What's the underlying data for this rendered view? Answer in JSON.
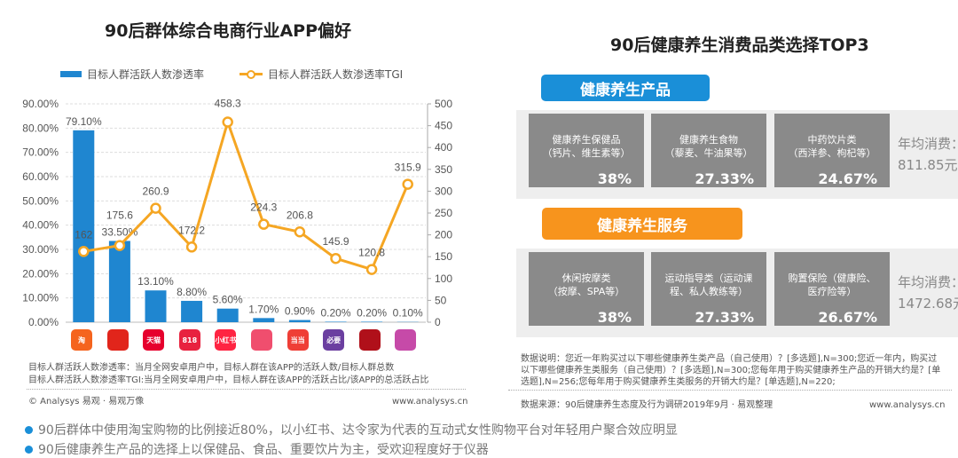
{
  "left": {
    "title": "90后群体综合电商行业APP偏好",
    "notes": [
      "目标人群活跃人数渗透率：当月全网安卓用户中，目标人群在该APP的活跃人数/目标人群总数",
      "目标人群活跃人数渗透率TGI:当月全网安卓用户中，目标人群在该APP的活跃占比/该APP的总活跃占比"
    ],
    "copyright": "© Analysys 易观 · 易观万像",
    "site": "www.analysys.cn",
    "app_icons": [
      {
        "icon": "taobao-icon",
        "color": "#f5641e",
        "text": "淘"
      },
      {
        "icon": "jd-icon",
        "color": "#e1251b",
        "text": ""
      },
      {
        "icon": "tmall-icon",
        "color": "#e6002d",
        "text": "天猫"
      },
      {
        "icon": "818-icon",
        "color": "#e8223f",
        "text": "818"
      },
      {
        "icon": "xiaohongshu-icon",
        "color": "#ff2442",
        "text": "小红书"
      },
      {
        "icon": "pink-app-icon",
        "color": "#f04e6e",
        "text": ""
      },
      {
        "icon": "dangdang-icon",
        "color": "#ef3e36",
        "text": "当当"
      },
      {
        "icon": "biyao-icon",
        "color": "#6b3fa0",
        "text": "必要"
      },
      {
        "icon": "red-bag-app-icon",
        "color": "#b0101a",
        "text": ""
      },
      {
        "icon": "magenta-app-icon",
        "color": "#c64aa8",
        "text": ""
      }
    ]
  },
  "chart_data": {
    "type": "bar+line",
    "title": "90后群体综合电商行业APP偏好",
    "categories": [
      "1",
      "2",
      "3",
      "4",
      "5",
      "6",
      "7",
      "8",
      "9",
      "10"
    ],
    "series": [
      {
        "name": "目标人群活跃人数渗透率",
        "type": "bar",
        "axis": "left",
        "color": "#1f86d0",
        "values": [
          79.1,
          33.5,
          13.1,
          8.8,
          5.6,
          1.7,
          0.9,
          0.2,
          0.2,
          0.1
        ],
        "labels": [
          "79.10%",
          "33.50%",
          "13.10%",
          "8.80%",
          "5.60%",
          "1.70%",
          "0.90%",
          "0.20%",
          "0.20%",
          "0.10%"
        ]
      },
      {
        "name": "目标人群活跃人数渗透率TGI",
        "type": "line",
        "axis": "right",
        "color": "#f5a623",
        "values": [
          162,
          175.6,
          260.9,
          172.2,
          458.3,
          224.3,
          206.8,
          145.9,
          120.8,
          315.9
        ],
        "labels": [
          "162",
          "175.6",
          "260.9",
          "172.2",
          "458.3",
          "224.3",
          "206.8",
          "145.9",
          "120.8",
          "315.9"
        ]
      }
    ],
    "y_left": {
      "range": [
        0,
        90
      ],
      "ticks": [
        "0.00%",
        "10.00%",
        "20.00%",
        "30.00%",
        "40.00%",
        "50.00%",
        "60.00%",
        "70.00%",
        "80.00%",
        "90.00%"
      ]
    },
    "y_right": {
      "range": [
        0,
        500
      ],
      "ticks": [
        "0",
        "50",
        "100",
        "150",
        "200",
        "250",
        "300",
        "350",
        "400",
        "450",
        "500"
      ]
    },
    "grid": true,
    "legend": "top"
  },
  "right": {
    "title": "90后健康养生消费品类选择TOP3",
    "products": {
      "label": "健康养生产品",
      "color": "#1a8fd8",
      "items": [
        {
          "name": "健康养生保健品",
          "sub": "（钙片、维生素等）",
          "pct": "38%"
        },
        {
          "name": "健康养生食物",
          "sub": "（藜麦、牛油果等）",
          "pct": "27.33%"
        },
        {
          "name": "中药饮片类",
          "sub": "（西洋参、枸杞等）",
          "pct": "24.67%"
        }
      ],
      "annual_label": "年均消费：",
      "annual_value": "811.85元"
    },
    "services": {
      "label": "健康养生服务",
      "color": "#f7941d",
      "items": [
        {
          "name": "休闲按摩类",
          "sub": "（按摩、SPA等）",
          "pct": "38%"
        },
        {
          "name": "运动指导类（运动课",
          "sub": "程、私人教练等）",
          "pct": "27.33%"
        },
        {
          "name": "购置保险（健康险、",
          "sub": "医疗险等）",
          "pct": "26.67%"
        }
      ],
      "annual_label": "年均消费：",
      "annual_value": "1472.68元"
    },
    "notes": [
      "数据说明：您近一年购买过以下哪些健康养生类产品（自己使用）？[多选题],N=300;您近一年内，购买过",
      "以下哪些健康养生类服务（自己使用）？[多选题],N=300;您每年用于购买健康养生产品的开销大约是？[单",
      "选题],N=256;您每年用于购买健康养生类服务的开销大约是？[单选题],N=220;"
    ],
    "source": "数据来源：90后健康养生态度及行为调研2019年9月 · 易观整理",
    "site": "www.analysys.cn"
  },
  "bullets": [
    "90后群体中使用淘宝购物的比例接近80%，以小红书、达令家为代表的互动式女性购物平台对年轻用户聚合效应明显",
    "90后健康养生产品的选择上以保健品、食品、重要饮片为主，受欢迎程度好于仪器"
  ]
}
